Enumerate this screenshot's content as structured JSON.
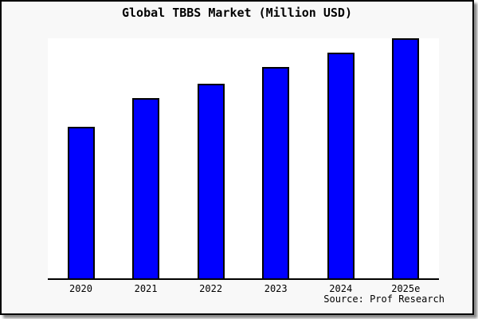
{
  "chart_data": {
    "type": "bar",
    "title": "Global TBBS Market (Million USD)",
    "categories": [
      "2020",
      "2021",
      "2022",
      "2023",
      "2024",
      "2025e"
    ],
    "values": [
      63,
      75,
      81,
      88,
      94,
      100
    ],
    "value_basis": "relative bar heights estimated from pixels, indexed to 2025e = 100; no y-axis ticks, gridlines or data labels are shown in the chart",
    "xlabel": "",
    "ylabel": "",
    "ylim": [
      0,
      100
    ],
    "grid": false,
    "legend": false,
    "source": "Source: Prof Research",
    "colors": {
      "bar_fill": "#0000ff",
      "bar_border": "#000000",
      "page_bg": "#f8f8f8",
      "plot_bg": "#ffffff",
      "axis_line": "#000000",
      "text": "#000000"
    }
  }
}
